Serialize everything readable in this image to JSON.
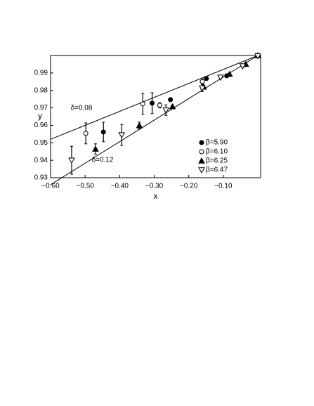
{
  "chart_data": {
    "type": "scatter",
    "xlabel": "x",
    "ylabel": "y",
    "xlim": [
      -0.6,
      0.008
    ],
    "ylim": [
      0.93,
      1.0
    ],
    "xticks": [
      {
        "value": -0.6,
        "label": "−0.60"
      },
      {
        "value": -0.5,
        "label": "−0.50"
      },
      {
        "value": -0.4,
        "label": "−0.40"
      },
      {
        "value": -0.3,
        "label": "−0.30"
      },
      {
        "value": -0.2,
        "label": "−0.20"
      },
      {
        "value": -0.1,
        "label": "−0.10"
      }
    ],
    "yticks": [
      0.93,
      0.94,
      0.95,
      0.96,
      0.97,
      0.98,
      0.99
    ],
    "legend": "lower right",
    "color": "#000000",
    "lines": [
      {
        "label": "δ=0.08",
        "x": [
          -0.6,
          0.0
        ],
        "values": [
          0.952,
          1.0
        ]
      },
      {
        "label": "δ=0.12",
        "x": [
          -0.6,
          0.0
        ],
        "values": [
          0.926,
          1.0
        ]
      }
    ],
    "series": [
      {
        "name": "β=5.90",
        "marker": "filled-circle",
        "x": [
          -0.447,
          -0.306,
          -0.253,
          -0.149,
          -0.09,
          0.0
        ],
        "values": [
          0.9562,
          0.9727,
          0.9747,
          0.9868,
          0.9884,
          1.0
        ],
        "errors": [
          0.0056,
          0.006,
          0.001,
          0.001,
          0.001,
          0.0005
        ]
      },
      {
        "name": "β=6.10",
        "marker": "open-circle",
        "x": [
          -0.498,
          -0.333,
          -0.284,
          -0.161,
          0.0
        ],
        "values": [
          0.9554,
          0.9723,
          0.9715,
          0.9851,
          0.9999
        ],
        "errors": [
          0.006,
          0.006,
          0.0015,
          0.0015,
          0.0005
        ]
      },
      {
        "name": "β=6.25",
        "marker": "filled-triangle",
        "x": [
          -0.47,
          -0.343,
          -0.247,
          -0.157,
          -0.082,
          -0.035,
          0.0
        ],
        "values": [
          0.9464,
          0.9598,
          0.9707,
          0.982,
          0.9893,
          0.995,
          1.0
        ],
        "errors": [
          0.003,
          0.002,
          0.001,
          0.001,
          0.0005,
          0.0005,
          0.0005
        ]
      },
      {
        "name": "β=6.47",
        "marker": "open-triangle-down",
        "x": [
          -0.539,
          -0.394,
          -0.266,
          -0.161,
          -0.108,
          -0.044,
          0.0
        ],
        "values": [
          0.94,
          0.9545,
          0.9687,
          0.9813,
          0.9875,
          0.994,
          0.9997
        ],
        "errors": [
          0.008,
          0.006,
          0.003,
          0.002,
          0.001,
          0.001,
          0.0005
        ]
      }
    ]
  }
}
